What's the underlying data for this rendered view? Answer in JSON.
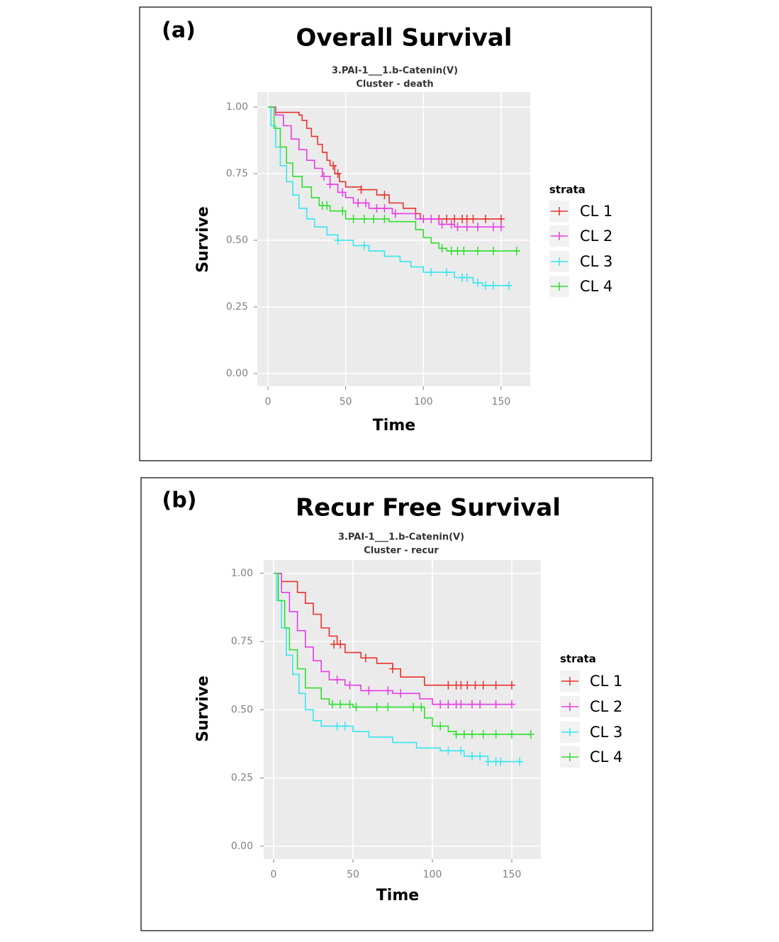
{
  "chart_data": [
    {
      "type": "survival",
      "panel_label": "(a)",
      "title": "Overall Survival",
      "subtitle": [
        "3.PAI-1___1.b-Catenin(V)",
        "Cluster - death"
      ],
      "x_label": "Time",
      "y_label": "Survive",
      "legend_title": "strata",
      "legend": "right",
      "grid": true,
      "xlim": [
        -6.8,
        168.7
      ],
      "ylim": [
        -0.048,
        1.056
      ],
      "xticks": [
        0,
        50,
        100,
        150
      ],
      "yticks": [
        {
          "value": 0,
          "label": "0.00"
        },
        0.25,
        {
          "value": 0.5,
          "label": "0.50"
        },
        0.75,
        {
          "value": 1,
          "label": "1.00"
        }
      ],
      "series": [
        {
          "name": "CL 1",
          "color": "#e8322e",
          "x": [
            0,
            5,
            20,
            22,
            25,
            28,
            32,
            35,
            38,
            40,
            43,
            46,
            50,
            60,
            70,
            78,
            87,
            95,
            98,
            152
          ],
          "values": [
            1,
            0.98,
            0.97,
            0.95,
            0.92,
            0.89,
            0.86,
            0.83,
            0.8,
            0.78,
            0.75,
            0.72,
            0.7,
            0.69,
            0.67,
            0.64,
            0.62,
            0.6,
            0.58,
            0.58
          ],
          "censor_x": [
            42,
            45,
            60,
            75,
            110,
            115,
            120,
            125,
            128,
            132,
            140,
            150
          ],
          "censor_values": [
            0.78,
            0.75,
            0.69,
            0.67,
            0.58,
            0.58,
            0.58,
            0.58,
            0.58,
            0.58,
            0.58,
            0.58
          ]
        },
        {
          "name": "CL 2",
          "color": "#e63ce6",
          "x": [
            0,
            5,
            10,
            15,
            20,
            25,
            30,
            35,
            40,
            45,
            50,
            55,
            65,
            80,
            95,
            110,
            120,
            150
          ],
          "values": [
            1,
            0.97,
            0.93,
            0.88,
            0.84,
            0.8,
            0.77,
            0.74,
            0.71,
            0.68,
            0.66,
            0.64,
            0.62,
            0.6,
            0.58,
            0.56,
            0.55,
            0.55
          ],
          "censor_x": [
            36,
            40,
            48,
            58,
            63,
            70,
            75,
            82,
            100,
            105,
            112,
            118,
            122,
            128,
            135,
            145,
            150
          ],
          "censor_values": [
            0.74,
            0.71,
            0.68,
            0.64,
            0.64,
            0.62,
            0.62,
            0.6,
            0.58,
            0.58,
            0.56,
            0.56,
            0.55,
            0.55,
            0.55,
            0.55,
            0.55
          ]
        },
        {
          "name": "CL 3",
          "color": "#36e6ef",
          "x": [
            0,
            2,
            5,
            8,
            12,
            16,
            20,
            25,
            30,
            38,
            45,
            55,
            65,
            75,
            85,
            92,
            100,
            120,
            132,
            138,
            155
          ],
          "values": [
            1,
            0.93,
            0.85,
            0.78,
            0.72,
            0.67,
            0.62,
            0.58,
            0.55,
            0.52,
            0.5,
            0.48,
            0.46,
            0.44,
            0.42,
            0.4,
            0.38,
            0.36,
            0.34,
            0.33,
            0.33
          ],
          "censor_x": [
            45,
            62,
            105,
            115,
            125,
            128,
            135,
            140,
            145,
            155
          ],
          "censor_values": [
            0.5,
            0.48,
            0.38,
            0.38,
            0.36,
            0.36,
            0.34,
            0.33,
            0.33,
            0.33
          ]
        },
        {
          "name": "CL 4",
          "color": "#2fe02f",
          "x": [
            0,
            4,
            8,
            12,
            16,
            22,
            28,
            33,
            40,
            50,
            78,
            95,
            100,
            105,
            110,
            115,
            162
          ],
          "values": [
            1,
            0.92,
            0.85,
            0.79,
            0.74,
            0.7,
            0.66,
            0.63,
            0.61,
            0.58,
            0.57,
            0.54,
            0.51,
            0.49,
            0.47,
            0.46,
            0.46
          ],
          "censor_x": [
            35,
            38,
            48,
            55,
            62,
            68,
            75,
            112,
            118,
            122,
            126,
            135,
            145,
            160
          ],
          "censor_values": [
            0.63,
            0.63,
            0.61,
            0.58,
            0.58,
            0.58,
            0.58,
            0.47,
            0.46,
            0.46,
            0.46,
            0.46,
            0.46,
            0.46
          ]
        }
      ]
    },
    {
      "type": "survival",
      "panel_label": "(b)",
      "title": "Recur Free Survival",
      "subtitle": [
        "3.PAI-1___1.b-Catenin(V)",
        "Cluster - recur"
      ],
      "x_label": "Time",
      "y_label": "Survive",
      "legend_title": "strata",
      "legend": "right",
      "grid": true,
      "xlim": [
        -6.25,
        168.3
      ],
      "ylim": [
        -0.047,
        1.049
      ],
      "xticks": [
        0,
        50,
        100,
        150
      ],
      "yticks": [
        {
          "value": 0,
          "label": "0.00"
        },
        0.25,
        {
          "value": 0.5,
          "label": "0.50"
        },
        0.75,
        {
          "value": 1,
          "label": "1.00"
        }
      ],
      "series": [
        {
          "name": "CL 1",
          "color": "#e8322e",
          "x": [
            0,
            5,
            15,
            20,
            25,
            30,
            35,
            40,
            45,
            55,
            65,
            75,
            80,
            95,
            152
          ],
          "values": [
            1,
            0.97,
            0.93,
            0.89,
            0.85,
            0.8,
            0.77,
            0.74,
            0.71,
            0.69,
            0.67,
            0.65,
            0.62,
            0.59,
            0.59
          ],
          "censor_x": [
            38,
            42,
            58,
            75,
            110,
            115,
            118,
            122,
            127,
            132,
            140,
            150
          ],
          "censor_values": [
            0.74,
            0.74,
            0.69,
            0.65,
            0.59,
            0.59,
            0.59,
            0.59,
            0.59,
            0.59,
            0.59,
            0.59
          ]
        },
        {
          "name": "CL 2",
          "color": "#e63ce6",
          "x": [
            0,
            5,
            10,
            15,
            20,
            25,
            30,
            35,
            45,
            55,
            75,
            92,
            100,
            150
          ],
          "values": [
            1,
            0.93,
            0.86,
            0.79,
            0.73,
            0.68,
            0.64,
            0.61,
            0.59,
            0.57,
            0.56,
            0.54,
            0.52,
            0.52
          ],
          "censor_x": [
            40,
            48,
            60,
            72,
            80,
            105,
            110,
            115,
            118,
            125,
            130,
            140,
            150
          ],
          "censor_values": [
            0.61,
            0.59,
            0.57,
            0.57,
            0.56,
            0.52,
            0.52,
            0.52,
            0.52,
            0.52,
            0.52,
            0.52,
            0.52
          ]
        },
        {
          "name": "CL 3",
          "color": "#36e6ef",
          "x": [
            0,
            2,
            5,
            8,
            12,
            16,
            20,
            25,
            30,
            50,
            60,
            75,
            90,
            105,
            120,
            135,
            155
          ],
          "values": [
            1,
            0.9,
            0.8,
            0.7,
            0.63,
            0.56,
            0.5,
            0.46,
            0.44,
            0.42,
            0.4,
            0.38,
            0.36,
            0.35,
            0.33,
            0.31,
            0.31
          ],
          "censor_x": [
            40,
            45,
            110,
            118,
            125,
            130,
            135,
            140,
            143,
            155
          ],
          "censor_values": [
            0.44,
            0.44,
            0.35,
            0.35,
            0.33,
            0.33,
            0.31,
            0.31,
            0.31,
            0.31
          ]
        },
        {
          "name": "CL 4",
          "color": "#2fe02f",
          "x": [
            0,
            3,
            7,
            10,
            15,
            20,
            30,
            35,
            50,
            95,
            100,
            110,
            115,
            162
          ],
          "values": [
            1,
            0.9,
            0.8,
            0.72,
            0.65,
            0.58,
            0.54,
            0.52,
            0.51,
            0.47,
            0.44,
            0.42,
            0.41,
            0.41
          ],
          "censor_x": [
            37,
            42,
            48,
            52,
            65,
            72,
            88,
            93,
            105,
            115,
            120,
            125,
            132,
            140,
            150,
            162
          ],
          "censor_values": [
            0.52,
            0.52,
            0.52,
            0.51,
            0.51,
            0.51,
            0.51,
            0.51,
            0.44,
            0.41,
            0.41,
            0.41,
            0.41,
            0.41,
            0.41,
            0.41
          ]
        }
      ]
    }
  ]
}
